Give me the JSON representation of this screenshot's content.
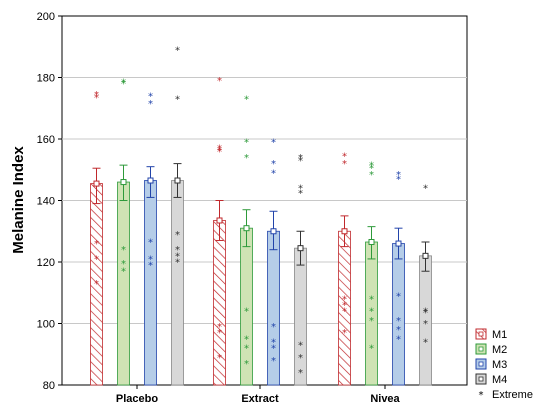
{
  "chart_data": {
    "type": "bar",
    "ylabel": "Melanine Index",
    "ylim": [
      80,
      200
    ],
    "yticks": [
      80,
      100,
      120,
      140,
      160,
      180,
      200
    ],
    "grid": true,
    "legend_position": "right",
    "categories": [
      "Placebo",
      "Extract",
      "Nivea"
    ],
    "series": [
      {
        "name": "M1",
        "color": "#c0282c",
        "fill": "hatch",
        "values": [
          145.5,
          133.5,
          130.0
        ],
        "err_low": [
          139.0,
          127.0,
          125.0
        ],
        "err_high": [
          150.5,
          140.0,
          135.0
        ],
        "extremes": [
          [
            174.5,
            173.5,
            126.0,
            121.0,
            113.0
          ],
          [
            179.0,
            157.0,
            156.0,
            99.0,
            97.0,
            89.0
          ],
          [
            108.0,
            106.0,
            104.0,
            97.0
          ]
        ]
      },
      {
        "name": "M2",
        "color": "#2e9a3a",
        "fill": "#cfe3b4",
        "values": [
          146.0,
          131.0,
          126.5
        ],
        "err_low": [
          140.0,
          125.0,
          121.0
        ],
        "err_high": [
          151.5,
          137.0,
          131.5
        ],
        "extremes": [
          [
            178.5,
            178.0,
            124.0,
            119.5,
            117.0
          ],
          [
            173.0,
            159.0,
            154.0,
            104.0,
            95.0,
            92.0,
            87.0
          ],
          [
            108.0,
            104.0,
            101.0,
            92.0
          ]
        ]
      },
      {
        "name": "M3",
        "color": "#2244aa",
        "fill": "#b5cde8",
        "values": [
          146.5,
          130.0,
          126.0
        ],
        "err_low": [
          141.0,
          124.0,
          121.0
        ],
        "err_high": [
          151.0,
          136.5,
          131.0
        ],
        "extremes": [
          [
            174.0,
            171.5,
            126.5,
            121.0,
            119.0
          ],
          [
            159.0,
            152.0,
            149.0,
            99.0,
            94.0,
            92.0,
            88.0
          ],
          [
            109.0,
            101.0,
            98.0,
            95.0
          ]
        ]
      },
      {
        "name": "M4",
        "color": "#333333",
        "fill": "#d8d8d8",
        "values": [
          146.5,
          124.5,
          122.0
        ],
        "err_low": [
          141.0,
          119.0,
          117.0
        ],
        "err_high": [
          152.0,
          130.0,
          126.5
        ],
        "extremes": [
          [
            189.0,
            173.0,
            129.0,
            124.0,
            122.0,
            120.0
          ],
          [
            154.0,
            153.0,
            144.0,
            142.5,
            93.0,
            89.0,
            84.0
          ],
          [
            144.0,
            104.0,
            103.5,
            100.0,
            94.0
          ]
        ]
      }
    ],
    "extra_marks": {
      "M1": [
        [
          1,
          156.5
        ],
        [
          2,
          154.5
        ],
        [
          2,
          152.0
        ]
      ],
      "M2": [
        [
          2,
          151.5
        ],
        [
          2,
          150.5
        ],
        [
          2,
          148.5
        ]
      ],
      "M3": [
        [
          2,
          148.5
        ],
        [
          2,
          147.0
        ]
      ],
      "M4": []
    },
    "legend_extreme": "Extreme",
    "extreme_marker": "*"
  }
}
